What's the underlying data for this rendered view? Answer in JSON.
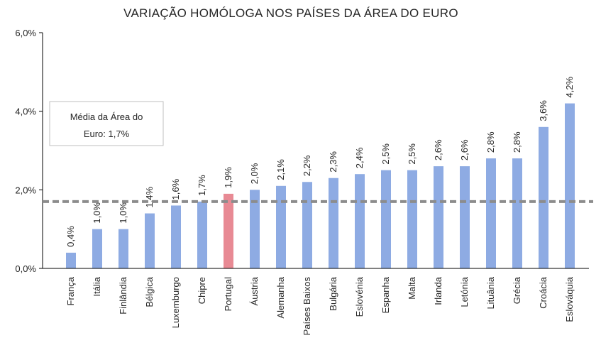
{
  "chart_data": {
    "type": "bar",
    "title": "VARIAÇÃO HOMÓLOGA NOS PAÍSES DA ÁREA DO EURO",
    "xlabel": "",
    "ylabel": "",
    "ylim": [
      0,
      6
    ],
    "yticks": [
      {
        "value": 0,
        "label": "0,0%"
      },
      {
        "value": 2,
        "label": "2,0%"
      },
      {
        "value": 4,
        "label": "4,0%"
      },
      {
        "value": 6,
        "label": "6,0%"
      }
    ],
    "categories": [
      "França",
      "Itália",
      "Finlândia",
      "Bélgica",
      "Luxemburgo",
      "Chipre",
      "Portugal",
      "Áustria",
      "Alemanha",
      "Países Baixos",
      "Bulgária",
      "Eslovénia",
      "Espanha",
      "Malta",
      "Irlanda",
      "Letónia",
      "Lituânia",
      "Grécia",
      "Croácia",
      "Eslováquia"
    ],
    "values": [
      0.4,
      1.0,
      1.0,
      1.4,
      1.6,
      1.7,
      1.9,
      2.0,
      2.1,
      2.2,
      2.3,
      2.4,
      2.5,
      2.5,
      2.6,
      2.6,
      2.8,
      2.8,
      3.6,
      4.2
    ],
    "data_labels": [
      "0,4%",
      "1,0%",
      "1,0%",
      "1,4%",
      "1,6%",
      "1,7%",
      "1,9%",
      "2,0%",
      "2,1%",
      "2,2%",
      "2,3%",
      "2,4%",
      "2,5%",
      "2,5%",
      "2,6%",
      "2,6%",
      "2,8%",
      "2,8%",
      "3,6%",
      "4,2%"
    ],
    "highlight_category": "Portugal",
    "colors": {
      "bar": "#8eabe3",
      "highlight": "#e88a94",
      "reference_line": "#8c8c8c",
      "axis": "#000000"
    },
    "reference_line": {
      "value": 1.7,
      "label_line1": "Média da Área do",
      "label_line2": "Euro: 1,7%"
    },
    "grid": false,
    "legend": "none"
  }
}
